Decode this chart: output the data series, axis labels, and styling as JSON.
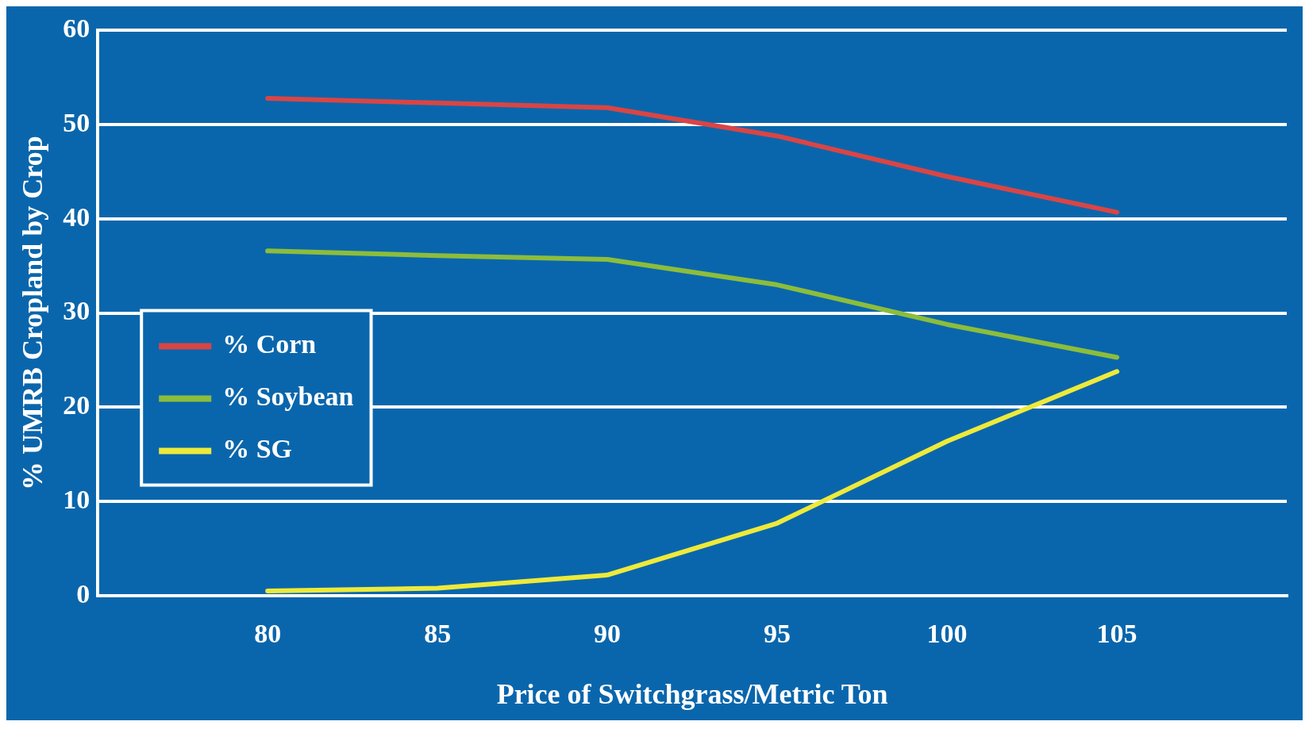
{
  "chart_data": {
    "type": "line",
    "xlabel": "Price of Switchgrass/Metric Ton",
    "ylabel": "% UMRB Cropland by Crop",
    "x": [
      80,
      85,
      90,
      95,
      100,
      105
    ],
    "xlim": [
      75,
      110
    ],
    "xticks": [
      80,
      85,
      90,
      95,
      100,
      105
    ],
    "ylim": [
      0,
      60
    ],
    "yticks": [
      0,
      10,
      20,
      30,
      40,
      50,
      60
    ],
    "grid": "y",
    "legend": "left",
    "marker": "none",
    "line_style": "solid",
    "series": [
      {
        "name": "% Corn",
        "color": "#d94545",
        "values": [
          52.8,
          52.3,
          51.8,
          48.8,
          44.5,
          40.7
        ]
      },
      {
        "name": "% Soybean",
        "color": "#8cbd3c",
        "values": [
          36.6,
          36.1,
          35.7,
          33,
          28.8,
          25.3
        ]
      },
      {
        "name": "% SG",
        "color": "#eeea3a",
        "values": [
          0.5,
          0.8,
          2.2,
          7.7,
          16.4,
          23.8
        ]
      }
    ]
  }
}
